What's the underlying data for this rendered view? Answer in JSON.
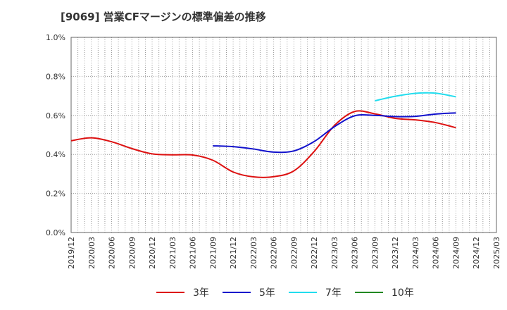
{
  "chart_data": {
    "type": "line",
    "title": "[9069]  営業CFマージンの標準偏差の推移",
    "xlabel": "",
    "ylabel": "",
    "ylim": [
      0,
      1.0
    ],
    "grid": true,
    "legend_placement": "bottom",
    "x_ticks": [
      "2019/12",
      "2020/03",
      "2020/06",
      "2020/09",
      "2020/12",
      "2021/03",
      "2021/06",
      "2021/09",
      "2021/12",
      "2022/03",
      "2022/06",
      "2022/09",
      "2022/12",
      "2023/03",
      "2023/06",
      "2023/09",
      "2023/12",
      "2024/03",
      "2024/06",
      "2024/09",
      "2024/12",
      "2025/03"
    ],
    "y_ticks": [
      "0.0%",
      "0.2%",
      "0.4%",
      "0.6%",
      "0.8%",
      "1.0%"
    ],
    "series": [
      {
        "name": "3年",
        "color": "#dd1111",
        "points": [
          [
            "2019/12",
            0.47
          ],
          [
            "2020/03",
            0.485
          ],
          [
            "2020/06",
            0.465
          ],
          [
            "2020/09",
            0.43
          ],
          [
            "2020/12",
            0.403
          ],
          [
            "2021/03",
            0.398
          ],
          [
            "2021/06",
            0.397
          ],
          [
            "2021/09",
            0.37
          ],
          [
            "2021/12",
            0.31
          ],
          [
            "2022/03",
            0.285
          ],
          [
            "2022/06",
            0.286
          ],
          [
            "2022/09",
            0.316
          ],
          [
            "2022/12",
            0.415
          ],
          [
            "2023/03",
            0.548
          ],
          [
            "2023/06",
            0.62
          ],
          [
            "2023/09",
            0.608
          ],
          [
            "2023/12",
            0.585
          ],
          [
            "2024/03",
            0.577
          ],
          [
            "2024/06",
            0.563
          ],
          [
            "2024/09",
            0.537
          ]
        ]
      },
      {
        "name": "5年",
        "color": "#1111cc",
        "points": [
          [
            "2021/09",
            0.444
          ],
          [
            "2021/12",
            0.44
          ],
          [
            "2022/03",
            0.428
          ],
          [
            "2022/06",
            0.412
          ],
          [
            "2022/09",
            0.418
          ],
          [
            "2022/12",
            0.466
          ],
          [
            "2023/03",
            0.542
          ],
          [
            "2023/06",
            0.598
          ],
          [
            "2023/09",
            0.6
          ],
          [
            "2023/12",
            0.594
          ],
          [
            "2024/03",
            0.595
          ],
          [
            "2024/06",
            0.607
          ],
          [
            "2024/09",
            0.613
          ]
        ]
      },
      {
        "name": "7年",
        "color": "#22ddee",
        "points": [
          [
            "2023/09",
            0.675
          ],
          [
            "2023/12",
            0.698
          ],
          [
            "2024/03",
            0.713
          ],
          [
            "2024/06",
            0.714
          ],
          [
            "2024/09",
            0.695
          ]
        ]
      },
      {
        "name": "10年",
        "color": "#228822",
        "points": []
      }
    ]
  }
}
